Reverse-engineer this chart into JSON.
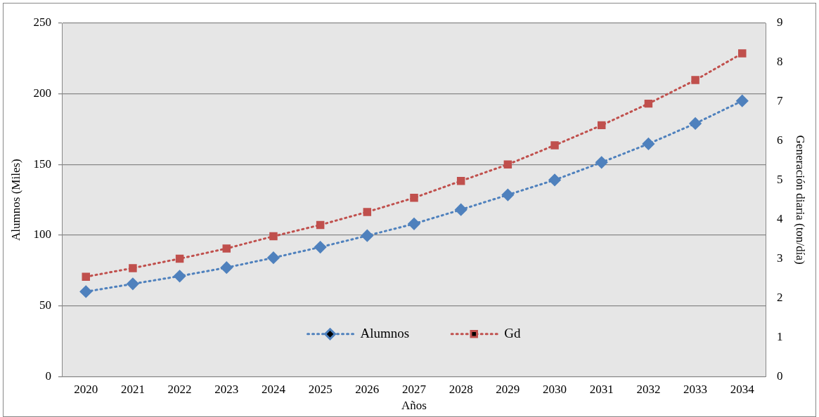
{
  "chart_data": {
    "type": "line",
    "xlabel": "Años",
    "ylabel": "Alumnos (Miles)",
    "y2label": "Generación diaria (ton/día)",
    "categories": [
      "2020",
      "2021",
      "2022",
      "2023",
      "2024",
      "2025",
      "2026",
      "2027",
      "2028",
      "2029",
      "2030",
      "2031",
      "2032",
      "2033",
      "2034"
    ],
    "series": [
      {
        "name": "Alumnos",
        "color": "#4f81bd",
        "marker": "diamond",
        "line_style": "dotted",
        "values": [
          60,
          65.5,
          71,
          77,
          84,
          91.5,
          99.6,
          108,
          118,
          128.5,
          139,
          151.5,
          164.6,
          179,
          195
        ]
      },
      {
        "name": "Gd",
        "color": "#c0504d",
        "marker": "square",
        "line_style": "dotted",
        "axis": "y2",
        "values": [
          2.54,
          2.76,
          3.0,
          3.26,
          3.57,
          3.86,
          4.19,
          4.55,
          4.98,
          5.4,
          5.89,
          6.4,
          6.95,
          7.55,
          8.23
        ]
      }
    ],
    "ylim": [
      0,
      250
    ],
    "yticks": [
      0,
      50,
      100,
      150,
      200,
      250
    ],
    "y2lim": [
      0,
      9
    ],
    "y2ticks": [
      0,
      1,
      2,
      3,
      4,
      5,
      6,
      7,
      8,
      9
    ],
    "grid": "y",
    "legend": "bottom"
  }
}
